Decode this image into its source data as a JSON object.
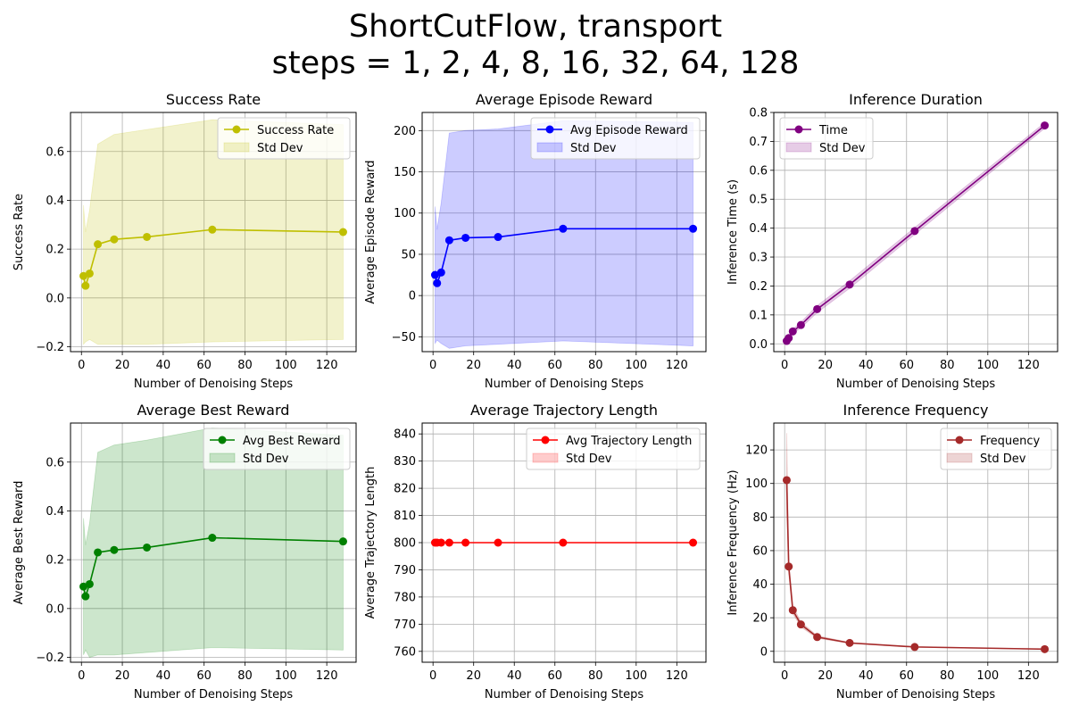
{
  "figure": {
    "title_line1": "ShortCutFlow, transport",
    "title_line2": "steps = 1, 2, 4, 8, 16, 32, 64, 128"
  },
  "chart_data": [
    {
      "type": "line",
      "title": "Success Rate",
      "xlabel": "Number of Denoising Steps",
      "ylabel": "Success Rate",
      "x": [
        1,
        2,
        4,
        8,
        16,
        32,
        64,
        128
      ],
      "series": [
        {
          "name": "Success Rate",
          "values": [
            0.09,
            0.05,
            0.1,
            0.22,
            0.24,
            0.25,
            0.28,
            0.27
          ]
        }
      ],
      "band": {
        "name": "Std Dev",
        "upper": [
          0.38,
          0.27,
          0.36,
          0.63,
          0.67,
          0.69,
          0.73,
          0.71
        ],
        "lower": [
          -0.19,
          -0.18,
          -0.17,
          -0.19,
          -0.19,
          -0.19,
          -0.18,
          -0.17
        ]
      },
      "color": "#bfbf00",
      "fill_color": "#bfbf00",
      "fill_opacity": 0.2,
      "xlim": [
        -5.35,
        134.35
      ],
      "ylim": [
        -0.22,
        0.76
      ],
      "xticks": [
        0,
        20,
        40,
        60,
        80,
        100,
        120
      ],
      "yticks": [
        -0.2,
        0.0,
        0.2,
        0.4,
        0.6
      ],
      "ytick_labels": [
        "−0.2",
        "0.0",
        "0.2",
        "0.4",
        "0.6"
      ],
      "grid": true,
      "legend_position": "upper right"
    },
    {
      "type": "line",
      "title": "Average Episode Reward",
      "xlabel": "Number of Denoising Steps",
      "ylabel": "Average Episode Reward",
      "x": [
        1,
        2,
        4,
        8,
        16,
        32,
        64,
        128
      ],
      "series": [
        {
          "name": "Avg Episode Reward",
          "values": [
            25,
            15,
            28,
            67,
            70,
            71,
            81,
            81
          ]
        }
      ],
      "band": {
        "name": "Std Dev",
        "upper": [
          108,
          80,
          112,
          197,
          200,
          202,
          212,
          210
        ],
        "lower": [
          -58,
          -54,
          -58,
          -64,
          -61,
          -59,
          -55,
          -61
        ]
      },
      "color": "#0000ff",
      "fill_color": "#0000ff",
      "fill_opacity": 0.2,
      "xlim": [
        -5.35,
        134.35
      ],
      "ylim": [
        -68,
        222
      ],
      "xticks": [
        0,
        20,
        40,
        60,
        80,
        100,
        120
      ],
      "yticks": [
        -50,
        0,
        50,
        100,
        150,
        200
      ],
      "ytick_labels": [
        "−50",
        "0",
        "50",
        "100",
        "150",
        "200"
      ],
      "grid": true,
      "legend_position": "upper right"
    },
    {
      "type": "line",
      "title": "Inference Duration",
      "xlabel": "Number of Denoising Steps",
      "ylabel": "Inference Time (s)",
      "x": [
        1,
        2,
        4,
        8,
        16,
        32,
        64,
        128
      ],
      "series": [
        {
          "name": "Time",
          "values": [
            0.01,
            0.02,
            0.043,
            0.065,
            0.12,
            0.205,
            0.39,
            0.755
          ]
        }
      ],
      "band": {
        "name": "Std Dev",
        "upper": [
          0.015,
          0.025,
          0.05,
          0.075,
          0.132,
          0.218,
          0.402,
          0.765
        ],
        "lower": [
          0.006,
          0.015,
          0.036,
          0.055,
          0.108,
          0.192,
          0.378,
          0.745
        ]
      },
      "color": "#800080",
      "fill_color": "#800080",
      "fill_opacity": 0.2,
      "xlim": [
        -5.35,
        134.35
      ],
      "ylim": [
        -0.027,
        0.8
      ],
      "xticks": [
        0,
        20,
        40,
        60,
        80,
        100,
        120
      ],
      "yticks": [
        0.0,
        0.1,
        0.2,
        0.3,
        0.4,
        0.5,
        0.6,
        0.7,
        0.8
      ],
      "ytick_labels": [
        "0.0",
        "0.1",
        "0.2",
        "0.3",
        "0.4",
        "0.5",
        "0.6",
        "0.7",
        "0.8"
      ],
      "grid": true,
      "legend_position": "upper left"
    },
    {
      "type": "line",
      "title": "Average Best Reward",
      "xlabel": "Number of Denoising Steps",
      "ylabel": "Average Best Reward",
      "x": [
        1,
        2,
        4,
        8,
        16,
        32,
        64,
        128
      ],
      "series": [
        {
          "name": "Avg Best Reward",
          "values": [
            0.09,
            0.05,
            0.1,
            0.23,
            0.24,
            0.25,
            0.29,
            0.275
          ]
        }
      ],
      "band": {
        "name": "Std Dev",
        "upper": [
          0.37,
          0.26,
          0.35,
          0.64,
          0.67,
          0.69,
          0.74,
          0.71
        ],
        "lower": [
          -0.19,
          -0.17,
          -0.2,
          -0.19,
          -0.19,
          -0.18,
          -0.16,
          -0.17
        ]
      },
      "color": "#008000",
      "fill_color": "#008000",
      "fill_opacity": 0.2,
      "xlim": [
        -5.35,
        134.35
      ],
      "ylim": [
        -0.22,
        0.76
      ],
      "xticks": [
        0,
        20,
        40,
        60,
        80,
        100,
        120
      ],
      "yticks": [
        -0.2,
        0.0,
        0.2,
        0.4,
        0.6
      ],
      "ytick_labels": [
        "−0.2",
        "0.0",
        "0.2",
        "0.4",
        "0.6"
      ],
      "grid": true,
      "legend_position": "upper right"
    },
    {
      "type": "line",
      "title": "Average Trajectory Length",
      "xlabel": "Number of Denoising Steps",
      "ylabel": "Average Trajectory Length",
      "x": [
        1,
        2,
        4,
        8,
        16,
        32,
        64,
        128
      ],
      "series": [
        {
          "name": "Avg Trajectory Length",
          "values": [
            800,
            800,
            800,
            800,
            800,
            800,
            800,
            800
          ]
        }
      ],
      "band": {
        "name": "Std Dev",
        "upper": [
          800,
          800,
          800,
          800,
          800,
          800,
          800,
          800
        ],
        "lower": [
          800,
          800,
          800,
          800,
          800,
          800,
          800,
          800
        ]
      },
      "color": "#ff0000",
      "fill_color": "#ff0000",
      "fill_opacity": 0.2,
      "xlim": [
        -5.35,
        134.35
      ],
      "ylim": [
        756,
        844
      ],
      "xticks": [
        0,
        20,
        40,
        60,
        80,
        100,
        120
      ],
      "yticks": [
        760,
        770,
        780,
        790,
        800,
        810,
        820,
        830,
        840
      ],
      "ytick_labels": [
        "760",
        "770",
        "780",
        "790",
        "800",
        "810",
        "820",
        "830",
        "840"
      ],
      "grid": true,
      "legend_position": "upper right"
    },
    {
      "type": "line",
      "title": "Inference Frequency",
      "xlabel": "Number of Denoising Steps",
      "ylabel": "Inference Frequency (Hz)",
      "x": [
        1,
        2,
        4,
        8,
        16,
        32,
        64,
        128
      ],
      "series": [
        {
          "name": "Frequency",
          "values": [
            102,
            50.5,
            24.5,
            16,
            8.5,
            5,
            2.6,
            1.3
          ]
        }
      ],
      "band": {
        "name": "Std Dev",
        "upper": [
          130,
          55,
          27,
          17.5,
          9.3,
          5.3,
          2.8,
          1.4
        ],
        "lower": [
          82,
          46,
          22.5,
          14.5,
          7.8,
          4.7,
          2.4,
          1.2
        ]
      },
      "color": "#a52a2a",
      "fill_color": "#a52a2a",
      "fill_opacity": 0.2,
      "xlim": [
        -5.35,
        134.35
      ],
      "ylim": [
        -6.5,
        136
      ],
      "xticks": [
        0,
        20,
        40,
        60,
        80,
        100,
        120
      ],
      "yticks": [
        0,
        20,
        40,
        60,
        80,
        100,
        120
      ],
      "ytick_labels": [
        "0",
        "20",
        "40",
        "60",
        "80",
        "100",
        "120"
      ],
      "grid": true,
      "legend_position": "upper right"
    }
  ]
}
